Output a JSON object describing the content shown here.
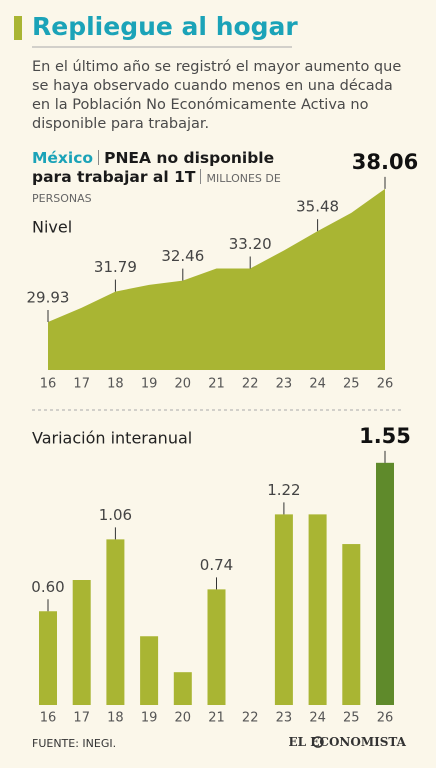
{
  "header": {
    "title": "Repliegue al hogar",
    "subtitle": "En el último año se registró el mayor aumento que se haya observado cuando menos en una década en la Población No Económicamente Activa no disponible para trabajar."
  },
  "chart_header": {
    "country": "México",
    "measure": "PNEA no disponible para trabajar al 1T",
    "unit": "MILLONES DE PERSONAS"
  },
  "chart_data": [
    {
      "type": "area",
      "title": "Nivel",
      "color": "#a9b533",
      "categories": [
        "16",
        "17",
        "18",
        "19",
        "20",
        "21",
        "22",
        "23",
        "24",
        "25",
        "26"
      ],
      "values": [
        29.93,
        30.8,
        31.79,
        32.2,
        32.46,
        33.2,
        33.2,
        34.3,
        35.48,
        36.6,
        38.06
      ],
      "value_labels": [
        "29.93",
        null,
        "31.79",
        null,
        "32.46",
        null,
        "33.20",
        null,
        "35.48",
        null,
        "38.06"
      ],
      "ylim": [
        27,
        38.3
      ]
    },
    {
      "type": "bar",
      "title": "Variación interanual",
      "categories": [
        "16",
        "17",
        "18",
        "19",
        "20",
        "21",
        "22",
        "23",
        "24",
        "25",
        "26"
      ],
      "values": [
        0.6,
        0.8,
        1.06,
        0.44,
        0.21,
        0.74,
        null,
        1.22,
        1.22,
        1.03,
        1.55
      ],
      "value_labels": [
        "0.60",
        null,
        "1.06",
        null,
        null,
        "0.74",
        null,
        "1.22",
        null,
        null,
        "1.55"
      ],
      "colors": [
        "#a9b533",
        "#a9b533",
        "#a9b533",
        "#a9b533",
        "#a9b533",
        "#a9b533",
        "#a9b533",
        "#a9b533",
        "#a9b533",
        "#a9b533",
        "#5f8a2b"
      ],
      "ylim": [
        0,
        1.6
      ]
    }
  ],
  "source": "FUENTE: INEGI.",
  "brand": "EL ECONOMISTA"
}
